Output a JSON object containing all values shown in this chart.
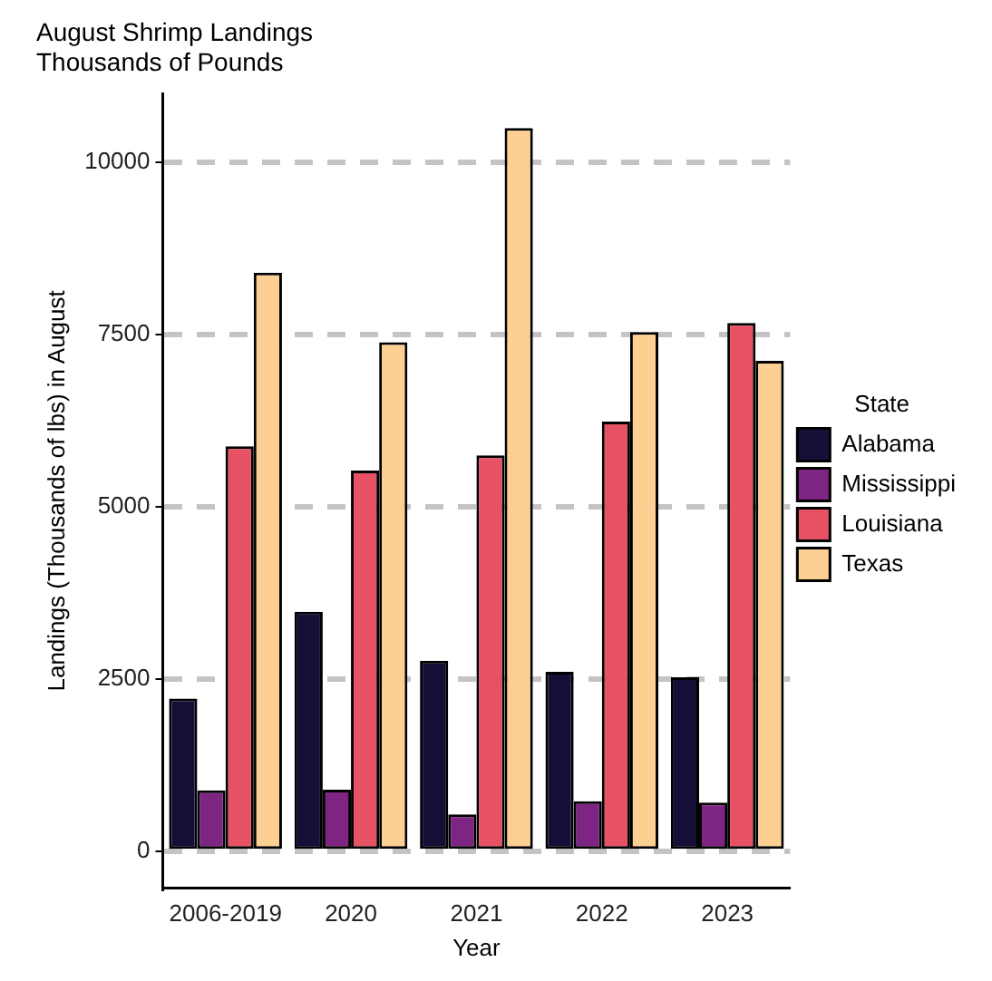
{
  "chart_data": {
    "type": "bar",
    "title": "August Shrimp Landings\nThousands of Pounds",
    "xlabel": "Year",
    "ylabel": "Landings (Thousands of lbs) in August",
    "legend_title": "State",
    "categories": [
      "2006-2019",
      "2020",
      "2021",
      "2022",
      "2023"
    ],
    "series": [
      {
        "name": "Alabama",
        "color": "#150e37",
        "values": [
          2220,
          3480,
          2770,
          2610,
          2530
        ]
      },
      {
        "name": "Mississippi",
        "color": "#7e2482",
        "values": [
          890,
          900,
          540,
          730,
          710
        ]
      },
      {
        "name": "Louisiana",
        "color": "#e65164",
        "values": [
          5880,
          5530,
          5750,
          6240,
          7670
        ]
      },
      {
        "name": "Texas",
        "color": "#fecf92",
        "values": [
          8400,
          7390,
          10500,
          7540,
          7120
        ]
      }
    ],
    "ylim": [
      -530,
      11000
    ],
    "yticks": [
      0,
      2500,
      5000,
      7500,
      10000
    ],
    "grid": "y",
    "legend": "right"
  }
}
